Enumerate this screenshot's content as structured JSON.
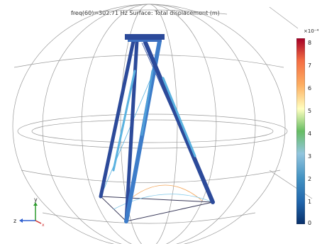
{
  "plot": {
    "title": "freq(60)=302.71 Hz  Surface: Total displacement (m)"
  },
  "colorbar": {
    "exponent": "×10⁻⁴",
    "ticks": [
      "8",
      "7",
      "6",
      "5",
      "4",
      "3",
      "2",
      "1",
      "0"
    ],
    "colors": [
      "#08306b",
      "#2166ac",
      "#4393c3",
      "#92c5de",
      "#66bd63",
      "#ffffbf",
      "#fdae61",
      "#f46d43",
      "#a50026"
    ]
  },
  "triad": {
    "y_label": "y",
    "z_label": "z",
    "x_label": "x",
    "y_color": "#2e9b2e",
    "z_color": "#2f5fd0",
    "x_color": "#d03030"
  },
  "colors": {
    "frame_dark": "#2c4a9a",
    "frame_mid": "#3d7cc9",
    "frame_light": "#5bb2e0",
    "grid": "#9a9a9a"
  }
}
